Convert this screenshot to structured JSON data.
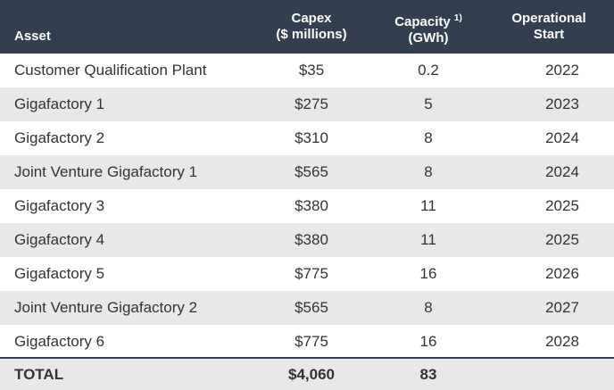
{
  "table": {
    "header": {
      "asset": "Asset",
      "capex": [
        "Capex",
        "($ millions)"
      ],
      "capacity": [
        "Capacity",
        "1)",
        "(GWh)"
      ],
      "start": [
        "Operational",
        "Start"
      ]
    },
    "rows": [
      [
        "Customer Qualification Plant",
        "$35",
        "0.2",
        "2022"
      ],
      [
        "Gigafactory 1",
        "$275",
        "5",
        "2023"
      ],
      [
        "Gigafactory 2",
        "$310",
        "8",
        "2024"
      ],
      [
        "Joint Venture Gigafactory 1",
        "$565",
        "8",
        "2024"
      ],
      [
        "Gigafactory 3",
        "$380",
        "11",
        "2025"
      ],
      [
        "Gigafactory 4",
        "$380",
        "11",
        "2025"
      ],
      [
        "Gigafactory 5",
        "$775",
        "16",
        "2026"
      ],
      [
        "Joint Venture Gigafactory 2",
        "$565",
        "8",
        "2027"
      ],
      [
        "Gigafactory 6",
        "$775",
        "16",
        "2028"
      ]
    ],
    "total": [
      "TOTAL",
      "$4,060",
      "83"
    ]
  }
}
